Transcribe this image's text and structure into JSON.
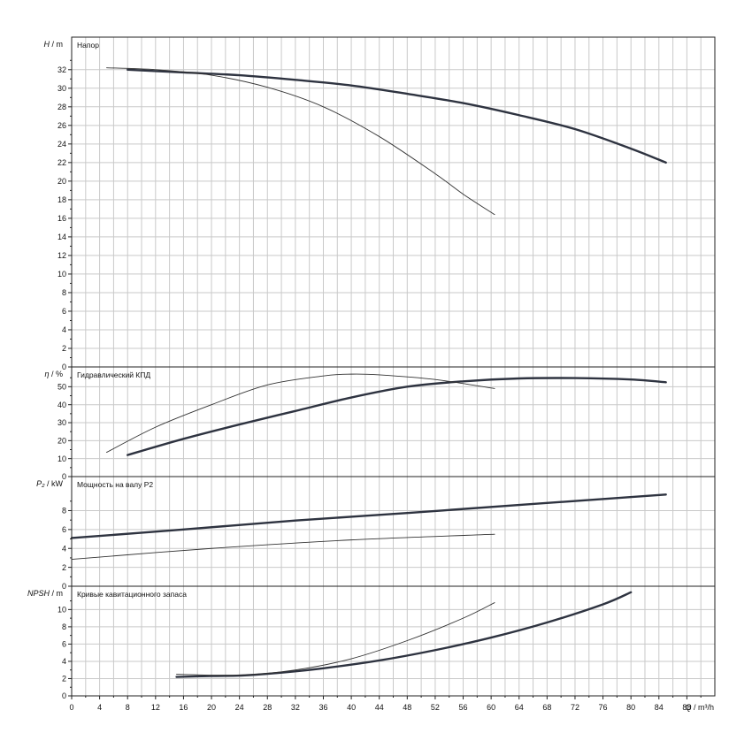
{
  "chart_data": {
    "type": "line",
    "x_axis": {
      "label": "Q / m³/h",
      "range": [
        0,
        92
      ],
      "ticks": [
        0,
        4,
        8,
        12,
        16,
        20,
        24,
        28,
        32,
        36,
        40,
        44,
        48,
        52,
        56,
        60,
        64,
        68,
        72,
        76,
        80,
        84,
        88
      ]
    },
    "grid": true,
    "panels": [
      {
        "id": "head",
        "title": "Напор",
        "ylabel_italic": "H",
        "ylabel_unit": "m",
        "ylim": [
          0,
          35.5
        ],
        "yticks": [
          0,
          2,
          4,
          6,
          8,
          10,
          12,
          14,
          16,
          18,
          20,
          22,
          24,
          26,
          28,
          30,
          32
        ],
        "series": [
          {
            "weight": "thick",
            "x": [
              8,
              16,
              24,
              32,
              40,
              48,
              56,
              64,
              72,
              80,
              85
            ],
            "y": [
              32,
              31.7,
              31.4,
              30.9,
              30.3,
              29.4,
              28.4,
              27.1,
              25.6,
              23.5,
              22
            ]
          },
          {
            "weight": "thin",
            "x": [
              5,
              12,
              20,
              28,
              36,
              44,
              52,
              56,
              60.5
            ],
            "y": [
              32.2,
              32,
              31.4,
              30.1,
              28,
              24.8,
              20.8,
              18.6,
              16.4
            ]
          }
        ]
      },
      {
        "id": "efficiency",
        "title": "Гидравлический КПД",
        "ylabel_italic": "η",
        "ylabel_unit": "%",
        "ylim": [
          0,
          61
        ],
        "yticks": [
          0,
          10,
          20,
          30,
          40,
          50
        ],
        "series": [
          {
            "weight": "thick",
            "x": [
              8,
              16,
              24,
              32,
              40,
              48,
              56,
              64,
              72,
              80,
              85
            ],
            "y": [
              12,
              21,
              29,
              36.5,
              44,
              50,
              53,
              54.6,
              54.8,
              54,
              52.5
            ]
          },
          {
            "weight": "thin",
            "x": [
              5,
              12,
              20,
              28,
              36,
              40,
              44,
              52,
              60.5
            ],
            "y": [
              13.5,
              27.5,
              40,
              51,
              56,
              57,
              56.6,
              54,
              49
            ]
          }
        ]
      },
      {
        "id": "power",
        "title": "Мощность на валу P2",
        "ylabel_italic": "P₂",
        "ylabel_unit": "kW",
        "ylim": [
          0,
          11.6
        ],
        "yticks": [
          0,
          2,
          4,
          6,
          8
        ],
        "series": [
          {
            "weight": "thick",
            "x": [
              0,
              16,
              32,
              48,
              64,
              85
            ],
            "y": [
              5.1,
              6,
              6.95,
              7.75,
              8.6,
              9.7
            ]
          },
          {
            "weight": "thin",
            "x": [
              0,
              20,
              40,
              60.5
            ],
            "y": [
              2.85,
              4,
              4.9,
              5.5
            ]
          }
        ]
      },
      {
        "id": "npsh",
        "title": "Кривые кавитационного запаса",
        "ylabel_italic": "NPSH",
        "ylabel_unit": "m",
        "ylim": [
          0,
          12.7
        ],
        "yticks": [
          0,
          2,
          4,
          6,
          8,
          10
        ],
        "series": [
          {
            "weight": "thick",
            "x": [
              15,
              20,
              24,
              28,
              36,
              44,
              52,
              60,
              68,
              76,
              80
            ],
            "y": [
              2.2,
              2.3,
              2.35,
              2.55,
              3.2,
              4.1,
              5.3,
              6.75,
              8.5,
              10.6,
              12
            ]
          },
          {
            "weight": "thin",
            "x": [
              15,
              24,
              32,
              40,
              48,
              56,
              60.5
            ],
            "y": [
              2.5,
              2.4,
              3,
              4.3,
              6.4,
              9,
              10.8
            ]
          }
        ]
      }
    ]
  }
}
